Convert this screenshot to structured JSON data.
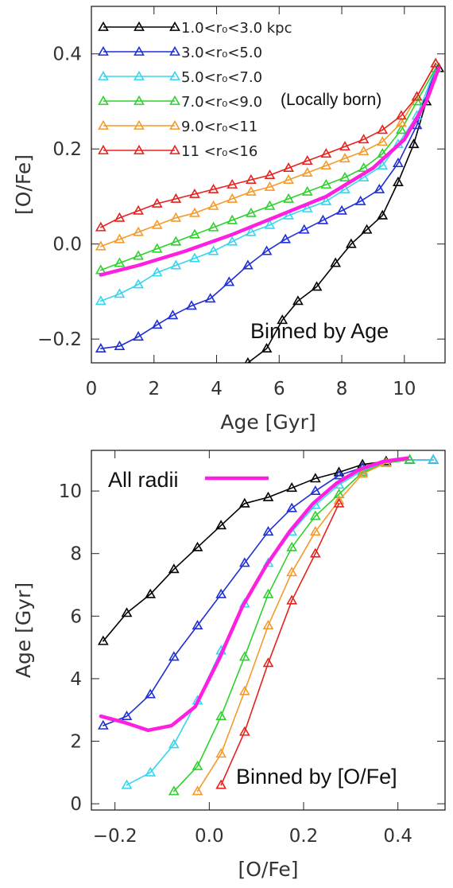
{
  "chart_data": [
    {
      "type": "line",
      "xlabel": "Age [Gyr]",
      "ylabel": "[O/Fe]",
      "xlim": [
        0,
        11.3
      ],
      "ylim": [
        -0.25,
        0.5
      ],
      "xticks": [
        "0",
        "2",
        "4",
        "6",
        "8",
        "10"
      ],
      "xtick_values": [
        0,
        2,
        4,
        6,
        8,
        10
      ],
      "yticks": [
        "−0.2",
        "0.0",
        "0.2",
        "0.4"
      ],
      "ytick_values": [
        -0.2,
        0.0,
        0.2,
        0.4
      ],
      "annotation": "Binned by Age",
      "annotation_secondary": "(Locally born)",
      "legend": [
        {
          "label": "1.0<r₀<3.0 kpc",
          "color": "#000000"
        },
        {
          "label": "3.0<r₀<5.0",
          "color": "#1f2fd6"
        },
        {
          "label": "5.0<r₀<7.0",
          "color": "#33d6ee"
        },
        {
          "label": "7.0<r₀<9.0",
          "color": "#2ed12e"
        },
        {
          "label": "9.0<r₀<11",
          "color": "#f59a2b"
        },
        {
          "label": "11 <r₀<16",
          "color": "#e8211d"
        }
      ],
      "series": [
        {
          "color": "#000000",
          "marker": "triangle",
          "x": [
            5.0,
            5.6,
            6.1,
            6.6,
            7.2,
            7.8,
            8.3,
            8.8,
            9.3,
            9.8,
            10.3,
            10.7,
            11.1
          ],
          "y": [
            -0.25,
            -0.22,
            -0.16,
            -0.12,
            -0.09,
            -0.04,
            0.0,
            0.03,
            0.06,
            0.13,
            0.21,
            0.3,
            0.37
          ]
        },
        {
          "color": "#1f2fd6",
          "marker": "triangle",
          "x": [
            0.3,
            0.9,
            1.5,
            2.1,
            2.6,
            3.2,
            3.8,
            4.4,
            5.0,
            5.6,
            6.2,
            6.8,
            7.4,
            8.0,
            8.6,
            9.2,
            9.8,
            10.4,
            11.0
          ],
          "y": [
            -0.22,
            -0.215,
            -0.195,
            -0.17,
            -0.15,
            -0.13,
            -0.115,
            -0.08,
            -0.045,
            -0.015,
            0.01,
            0.03,
            0.05,
            0.07,
            0.09,
            0.115,
            0.17,
            0.25,
            0.37
          ]
        },
        {
          "color": "#33d6ee",
          "marker": "triangle",
          "x": [
            0.3,
            0.9,
            1.5,
            2.1,
            2.7,
            3.3,
            3.9,
            4.5,
            5.1,
            5.7,
            6.3,
            6.9,
            7.5,
            8.1,
            8.7,
            9.3,
            9.8,
            10.4,
            11.0
          ],
          "y": [
            -0.12,
            -0.105,
            -0.085,
            -0.06,
            -0.045,
            -0.03,
            -0.015,
            0.005,
            0.025,
            0.04,
            0.06,
            0.075,
            0.09,
            0.115,
            0.14,
            0.165,
            0.21,
            0.27,
            0.37
          ]
        },
        {
          "color": "#2ed12e",
          "marker": "triangle",
          "x": [
            0.3,
            0.9,
            1.5,
            2.1,
            2.7,
            3.3,
            3.9,
            4.5,
            5.1,
            5.7,
            6.3,
            6.9,
            7.5,
            8.1,
            8.7,
            9.3,
            9.9,
            10.4,
            11.0
          ],
          "y": [
            -0.055,
            -0.04,
            -0.025,
            -0.01,
            0.005,
            0.02,
            0.035,
            0.05,
            0.065,
            0.08,
            0.095,
            0.11,
            0.125,
            0.14,
            0.16,
            0.19,
            0.24,
            0.3,
            0.37
          ]
        },
        {
          "color": "#f59a2b",
          "marker": "triangle",
          "x": [
            0.3,
            0.9,
            1.5,
            2.1,
            2.7,
            3.3,
            3.9,
            4.5,
            5.1,
            5.7,
            6.3,
            6.9,
            7.5,
            8.1,
            8.7,
            9.3,
            9.9,
            10.4,
            11.0
          ],
          "y": [
            -0.005,
            0.01,
            0.025,
            0.04,
            0.055,
            0.065,
            0.08,
            0.095,
            0.11,
            0.12,
            0.135,
            0.15,
            0.165,
            0.18,
            0.195,
            0.215,
            0.255,
            0.31,
            0.38
          ]
        },
        {
          "color": "#e8211d",
          "marker": "triangle",
          "x": [
            0.3,
            0.9,
            1.5,
            2.1,
            2.7,
            3.3,
            3.9,
            4.5,
            5.1,
            5.7,
            6.3,
            6.9,
            7.5,
            8.1,
            8.7,
            9.3,
            9.9,
            10.4,
            11.0
          ],
          "y": [
            0.035,
            0.055,
            0.07,
            0.085,
            0.095,
            0.105,
            0.115,
            0.125,
            0.135,
            0.145,
            0.16,
            0.175,
            0.19,
            0.205,
            0.22,
            0.24,
            0.27,
            0.31,
            0.38
          ]
        },
        {
          "color": "#ff1fe0",
          "marker": "none",
          "thick": true,
          "x": [
            0.3,
            1.5,
            3.0,
            4.5,
            6.0,
            7.5,
            9.0,
            10.0,
            10.7,
            11.1
          ],
          "y": [
            -0.065,
            -0.045,
            -0.015,
            0.02,
            0.06,
            0.1,
            0.16,
            0.22,
            0.3,
            0.37
          ]
        }
      ]
    },
    {
      "type": "line",
      "xlabel": "[O/Fe]",
      "ylabel": "Age [Gyr]",
      "xlim": [
        -0.25,
        0.5
      ],
      "ylim": [
        -0.2,
        11.3
      ],
      "xticks": [
        "−0.2",
        "0.0",
        "0.2",
        "0.4"
      ],
      "xtick_values": [
        -0.2,
        0.0,
        0.2,
        0.4
      ],
      "yticks": [
        "0",
        "2",
        "4",
        "6",
        "8",
        "10"
      ],
      "ytick_values": [
        0,
        2,
        4,
        6,
        8,
        10
      ],
      "annotation": "Binned by [O/Fe]",
      "legend": [
        {
          "label": "All radii",
          "color": "#ff1fe0"
        }
      ],
      "series": [
        {
          "color": "#000000",
          "marker": "triangle",
          "x": [
            -0.225,
            -0.175,
            -0.125,
            -0.075,
            -0.025,
            0.025,
            0.075,
            0.125,
            0.175,
            0.225,
            0.275,
            0.325,
            0.375,
            0.425,
            0.475
          ],
          "y": [
            5.2,
            6.1,
            6.7,
            7.5,
            8.2,
            8.9,
            9.6,
            9.8,
            10.1,
            10.4,
            10.6,
            10.85,
            10.95,
            11.0,
            11.0
          ]
        },
        {
          "color": "#1f2fd6",
          "marker": "triangle",
          "x": [
            -0.225,
            -0.175,
            -0.125,
            -0.075,
            -0.025,
            0.025,
            0.075,
            0.125,
            0.175,
            0.225,
            0.275,
            0.325,
            0.375,
            0.425,
            0.475
          ],
          "y": [
            2.5,
            2.8,
            3.5,
            4.7,
            5.7,
            6.7,
            7.7,
            8.7,
            9.45,
            10.0,
            10.5,
            10.75,
            10.9,
            11.0,
            11.0
          ]
        },
        {
          "color": "#33d6ee",
          "marker": "triangle",
          "x": [
            -0.175,
            -0.125,
            -0.075,
            -0.025,
            0.025,
            0.075,
            0.125,
            0.175,
            0.225,
            0.275,
            0.325,
            0.375,
            0.425,
            0.475
          ],
          "y": [
            0.6,
            1.0,
            1.9,
            3.3,
            4.9,
            6.4,
            7.7,
            8.7,
            9.55,
            10.2,
            10.65,
            10.9,
            11.0,
            11.0
          ]
        },
        {
          "color": "#2ed12e",
          "marker": "triangle",
          "x": [
            -0.075,
            -0.025,
            0.025,
            0.075,
            0.125,
            0.175,
            0.225,
            0.275,
            0.325,
            0.375,
            0.425
          ],
          "y": [
            0.4,
            1.2,
            2.8,
            4.7,
            6.7,
            8.2,
            9.2,
            9.9,
            10.6,
            10.9,
            11.0
          ]
        },
        {
          "color": "#f59a2b",
          "marker": "triangle",
          "x": [
            -0.025,
            0.025,
            0.075,
            0.125,
            0.175,
            0.225,
            0.275,
            0.325,
            0.375
          ],
          "y": [
            0.4,
            1.6,
            3.6,
            5.7,
            7.4,
            8.7,
            9.7,
            10.55,
            10.9
          ]
        },
        {
          "color": "#e8211d",
          "marker": "triangle",
          "x": [
            0.025,
            0.075,
            0.125,
            0.175,
            0.225,
            0.275
          ],
          "y": [
            0.6,
            2.3,
            4.5,
            6.5,
            8.0,
            9.6
          ]
        },
        {
          "color": "#ff1fe0",
          "marker": "none",
          "thick": true,
          "x": [
            -0.23,
            -0.18,
            -0.13,
            -0.08,
            -0.03,
            0.02,
            0.07,
            0.12,
            0.17,
            0.22,
            0.27,
            0.32,
            0.37,
            0.42
          ],
          "y": [
            2.8,
            2.6,
            2.35,
            2.5,
            3.1,
            4.6,
            6.3,
            7.6,
            8.7,
            9.6,
            10.25,
            10.7,
            10.95,
            11.05
          ]
        }
      ]
    }
  ]
}
